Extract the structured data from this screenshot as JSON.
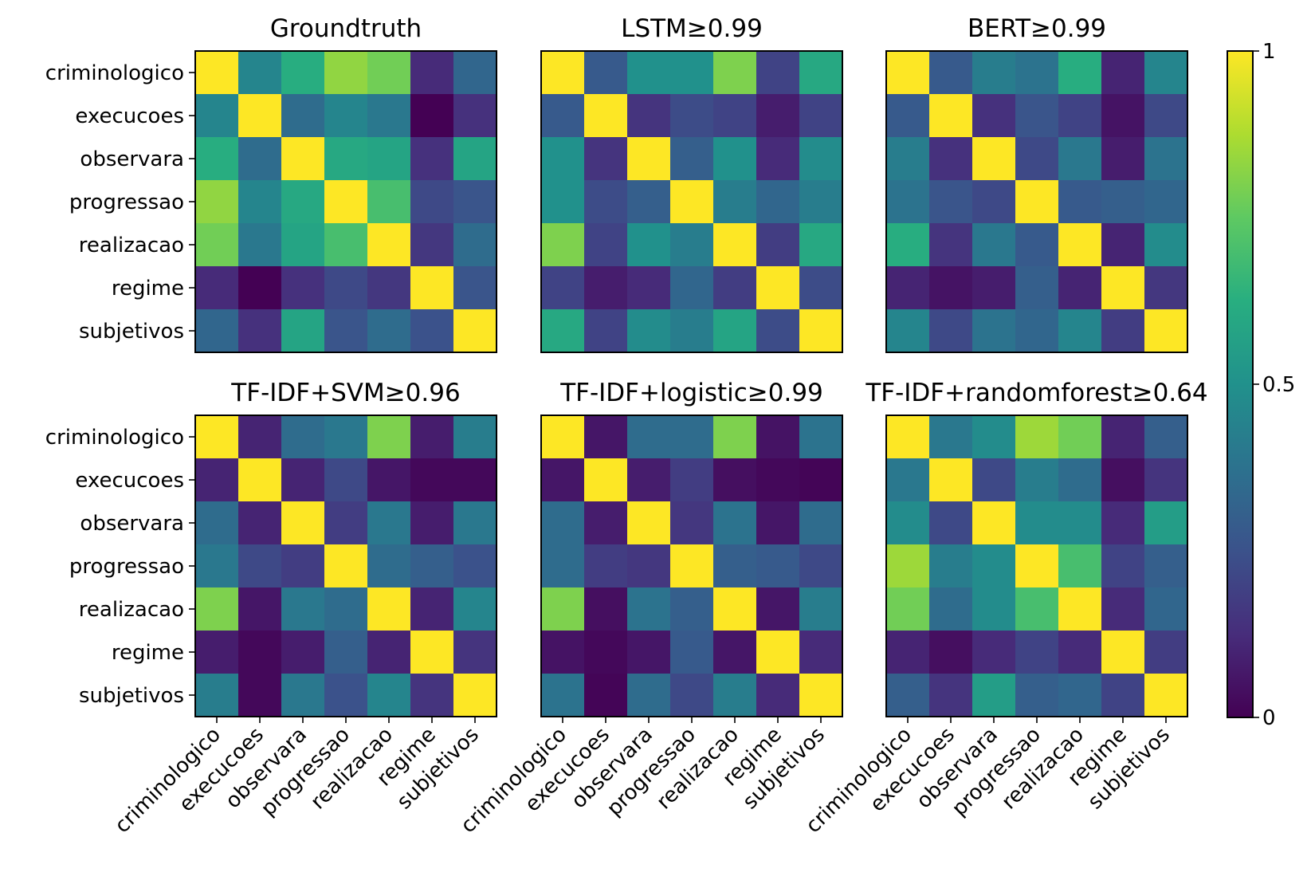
{
  "chart_data": {
    "type": "heatmap",
    "labels": [
      "criminologico",
      "execucoes",
      "observara",
      "progressao",
      "realizacao",
      "regime",
      "subjetivos"
    ],
    "colorbar": {
      "min": 0,
      "max": 1,
      "ticks": [
        "0",
        "0.5",
        "1"
      ],
      "colormap": "viridis"
    },
    "panels": [
      {
        "title": "Groundtruth",
        "matrix": [
          [
            1.0,
            0.45,
            0.62,
            0.83,
            0.78,
            0.12,
            0.33
          ],
          [
            0.45,
            1.0,
            0.35,
            0.45,
            0.4,
            0.0,
            0.14
          ],
          [
            0.62,
            0.35,
            1.0,
            0.6,
            0.58,
            0.14,
            0.58
          ],
          [
            0.83,
            0.45,
            0.6,
            1.0,
            0.7,
            0.22,
            0.26
          ],
          [
            0.78,
            0.4,
            0.58,
            0.7,
            1.0,
            0.16,
            0.35
          ],
          [
            0.12,
            0.0,
            0.14,
            0.22,
            0.16,
            1.0,
            0.26
          ],
          [
            0.33,
            0.14,
            0.58,
            0.26,
            0.35,
            0.25,
            1.0
          ]
        ]
      },
      {
        "title": "LSTM≥0.99",
        "matrix": [
          [
            1.0,
            0.28,
            0.5,
            0.5,
            0.8,
            0.2,
            0.6
          ],
          [
            0.28,
            1.0,
            0.15,
            0.23,
            0.2,
            0.08,
            0.2
          ],
          [
            0.5,
            0.15,
            1.0,
            0.3,
            0.5,
            0.12,
            0.48
          ],
          [
            0.5,
            0.23,
            0.3,
            1.0,
            0.42,
            0.33,
            0.42
          ],
          [
            0.8,
            0.2,
            0.5,
            0.42,
            1.0,
            0.18,
            0.6
          ],
          [
            0.2,
            0.08,
            0.12,
            0.33,
            0.18,
            1.0,
            0.23
          ],
          [
            0.6,
            0.2,
            0.48,
            0.42,
            0.58,
            0.23,
            1.0
          ]
        ]
      },
      {
        "title": "BERT≥0.99",
        "matrix": [
          [
            1.0,
            0.28,
            0.42,
            0.38,
            0.62,
            0.1,
            0.45
          ],
          [
            0.28,
            1.0,
            0.14,
            0.26,
            0.2,
            0.05,
            0.22
          ],
          [
            0.42,
            0.14,
            1.0,
            0.22,
            0.4,
            0.08,
            0.38
          ],
          [
            0.38,
            0.26,
            0.22,
            1.0,
            0.28,
            0.3,
            0.33
          ],
          [
            0.62,
            0.15,
            0.4,
            0.28,
            1.0,
            0.1,
            0.48
          ],
          [
            0.1,
            0.05,
            0.08,
            0.3,
            0.1,
            1.0,
            0.16
          ],
          [
            0.45,
            0.22,
            0.38,
            0.33,
            0.45,
            0.18,
            1.0
          ]
        ]
      },
      {
        "title": "TF-IDF+SVM≥0.96",
        "matrix": [
          [
            1.0,
            0.1,
            0.35,
            0.4,
            0.8,
            0.08,
            0.42
          ],
          [
            0.1,
            1.0,
            0.1,
            0.22,
            0.06,
            0.02,
            0.02
          ],
          [
            0.35,
            0.1,
            1.0,
            0.18,
            0.4,
            0.08,
            0.4
          ],
          [
            0.4,
            0.22,
            0.18,
            1.0,
            0.35,
            0.3,
            0.25
          ],
          [
            0.8,
            0.06,
            0.4,
            0.35,
            1.0,
            0.1,
            0.45
          ],
          [
            0.08,
            0.02,
            0.08,
            0.3,
            0.1,
            1.0,
            0.15
          ],
          [
            0.42,
            0.02,
            0.4,
            0.25,
            0.45,
            0.15,
            1.0
          ]
        ]
      },
      {
        "title": "TF-IDF+logistic≥0.99",
        "matrix": [
          [
            1.0,
            0.06,
            0.35,
            0.35,
            0.8,
            0.05,
            0.38
          ],
          [
            0.06,
            1.0,
            0.08,
            0.18,
            0.04,
            0.02,
            0.01
          ],
          [
            0.35,
            0.08,
            1.0,
            0.16,
            0.38,
            0.06,
            0.35
          ],
          [
            0.35,
            0.18,
            0.16,
            1.0,
            0.3,
            0.28,
            0.22
          ],
          [
            0.8,
            0.04,
            0.38,
            0.3,
            1.0,
            0.06,
            0.42
          ],
          [
            0.05,
            0.02,
            0.06,
            0.28,
            0.06,
            1.0,
            0.12
          ],
          [
            0.38,
            0.01,
            0.35,
            0.22,
            0.42,
            0.12,
            1.0
          ]
        ]
      },
      {
        "title": "TF-IDF+randomforest≥0.64",
        "matrix": [
          [
            1.0,
            0.4,
            0.48,
            0.85,
            0.78,
            0.1,
            0.3
          ],
          [
            0.4,
            1.0,
            0.22,
            0.42,
            0.35,
            0.04,
            0.15
          ],
          [
            0.48,
            0.22,
            1.0,
            0.48,
            0.48,
            0.12,
            0.55
          ],
          [
            0.85,
            0.42,
            0.48,
            1.0,
            0.7,
            0.2,
            0.3
          ],
          [
            0.78,
            0.35,
            0.48,
            0.7,
            1.0,
            0.12,
            0.33
          ],
          [
            0.1,
            0.04,
            0.12,
            0.2,
            0.12,
            1.0,
            0.18
          ],
          [
            0.3,
            0.15,
            0.55,
            0.3,
            0.33,
            0.2,
            1.0
          ]
        ]
      }
    ]
  }
}
